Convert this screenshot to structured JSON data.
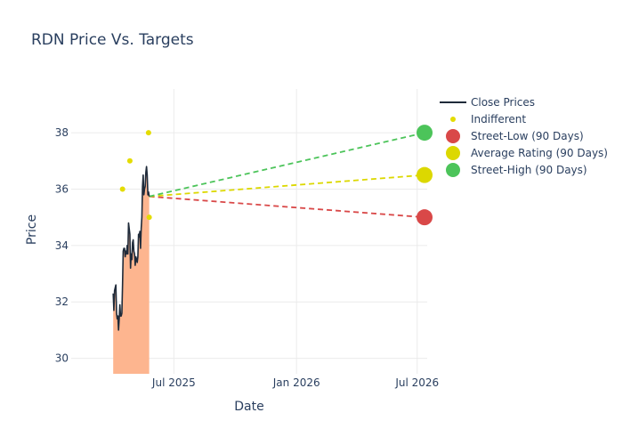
{
  "chart_data": {
    "type": "line",
    "title": "RDN Price Vs. Targets",
    "xlabel": "Date",
    "ylabel": "Price",
    "x_ticks": [
      "Jul 2025",
      "Jan 2026",
      "Jul 2026"
    ],
    "y_ticks": [
      30,
      32,
      34,
      36,
      38
    ],
    "ylim": [
      29.45,
      39.55
    ],
    "xlim": [
      "2025-01-28",
      "2026-07-16"
    ],
    "grid": true,
    "legend_position": "right",
    "series": [
      {
        "name": "Close Prices",
        "type": "line-area",
        "color": "#1f2b3a",
        "fill_color": "#fdb58f",
        "points": [
          [
            "2025-04-01",
            32.3
          ],
          [
            "2025-04-02",
            31.7
          ],
          [
            "2025-04-03",
            32.4
          ],
          [
            "2025-04-04",
            32.5
          ],
          [
            "2025-04-05",
            32.6
          ],
          [
            "2025-04-06",
            31.6
          ],
          [
            "2025-04-07",
            31.4
          ],
          [
            "2025-04-08",
            31.5
          ],
          [
            "2025-04-09",
            31.0
          ],
          [
            "2025-04-10",
            31.4
          ],
          [
            "2025-04-11",
            31.9
          ],
          [
            "2025-04-12",
            31.5
          ],
          [
            "2025-04-13",
            31.5
          ],
          [
            "2025-04-14",
            31.6
          ],
          [
            "2025-04-15",
            32.6
          ],
          [
            "2025-04-16",
            33.8
          ],
          [
            "2025-04-17",
            33.9
          ],
          [
            "2025-04-18",
            33.9
          ],
          [
            "2025-04-19",
            33.6
          ],
          [
            "2025-04-20",
            33.8
          ],
          [
            "2025-04-21",
            33.7
          ],
          [
            "2025-04-22",
            34.0
          ],
          [
            "2025-04-23",
            33.7
          ],
          [
            "2025-04-24",
            34.8
          ],
          [
            "2025-04-25",
            34.6
          ],
          [
            "2025-04-26",
            34.4
          ],
          [
            "2025-04-27",
            33.2
          ],
          [
            "2025-04-28",
            33.7
          ],
          [
            "2025-04-29",
            33.5
          ],
          [
            "2025-04-30",
            34.1
          ],
          [
            "2025-05-01",
            34.2
          ],
          [
            "2025-05-02",
            33.8
          ],
          [
            "2025-05-03",
            33.7
          ],
          [
            "2025-05-04",
            33.3
          ],
          [
            "2025-05-05",
            33.6
          ],
          [
            "2025-05-06",
            33.5
          ],
          [
            "2025-05-07",
            33.4
          ],
          [
            "2025-05-08",
            33.6
          ],
          [
            "2025-05-09",
            34.4
          ],
          [
            "2025-05-10",
            34.3
          ],
          [
            "2025-05-11",
            34.5
          ],
          [
            "2025-05-12",
            33.9
          ],
          [
            "2025-05-13",
            34.6
          ],
          [
            "2025-05-14",
            35.0
          ],
          [
            "2025-05-15",
            36.1
          ],
          [
            "2025-05-16",
            36.5
          ],
          [
            "2025-05-17",
            35.8
          ],
          [
            "2025-05-18",
            36.0
          ],
          [
            "2025-05-19",
            36.1
          ],
          [
            "2025-05-20",
            36.6
          ],
          [
            "2025-05-21",
            36.8
          ],
          [
            "2025-05-22",
            36.5
          ],
          [
            "2025-05-23",
            35.8
          ],
          [
            "2025-05-24",
            35.9
          ],
          [
            "2025-05-25",
            35.74
          ]
        ]
      },
      {
        "name": "Indifferent",
        "type": "scatter",
        "color": "#e4dc00",
        "points": [
          [
            "2025-04-15",
            36.0
          ],
          [
            "2025-04-26",
            37.0
          ],
          [
            "2025-05-24",
            38.0
          ],
          [
            "2025-05-25",
            35.0
          ]
        ]
      },
      {
        "name": "Street-Low (90 Days)",
        "type": "target",
        "color": "#d94848",
        "start": [
          "2025-05-25",
          35.74
        ],
        "end": [
          "2026-07-12",
          35.0
        ]
      },
      {
        "name": "Average Rating (90 Days)",
        "type": "target",
        "color": "#dcd800",
        "start": [
          "2025-05-25",
          35.74
        ],
        "end": [
          "2026-07-12",
          36.5
        ]
      },
      {
        "name": "Street-High (90 Days)",
        "type": "target",
        "color": "#4cc45a",
        "start": [
          "2025-05-25",
          35.74
        ],
        "end": [
          "2026-07-12",
          38.0
        ]
      }
    ]
  }
}
